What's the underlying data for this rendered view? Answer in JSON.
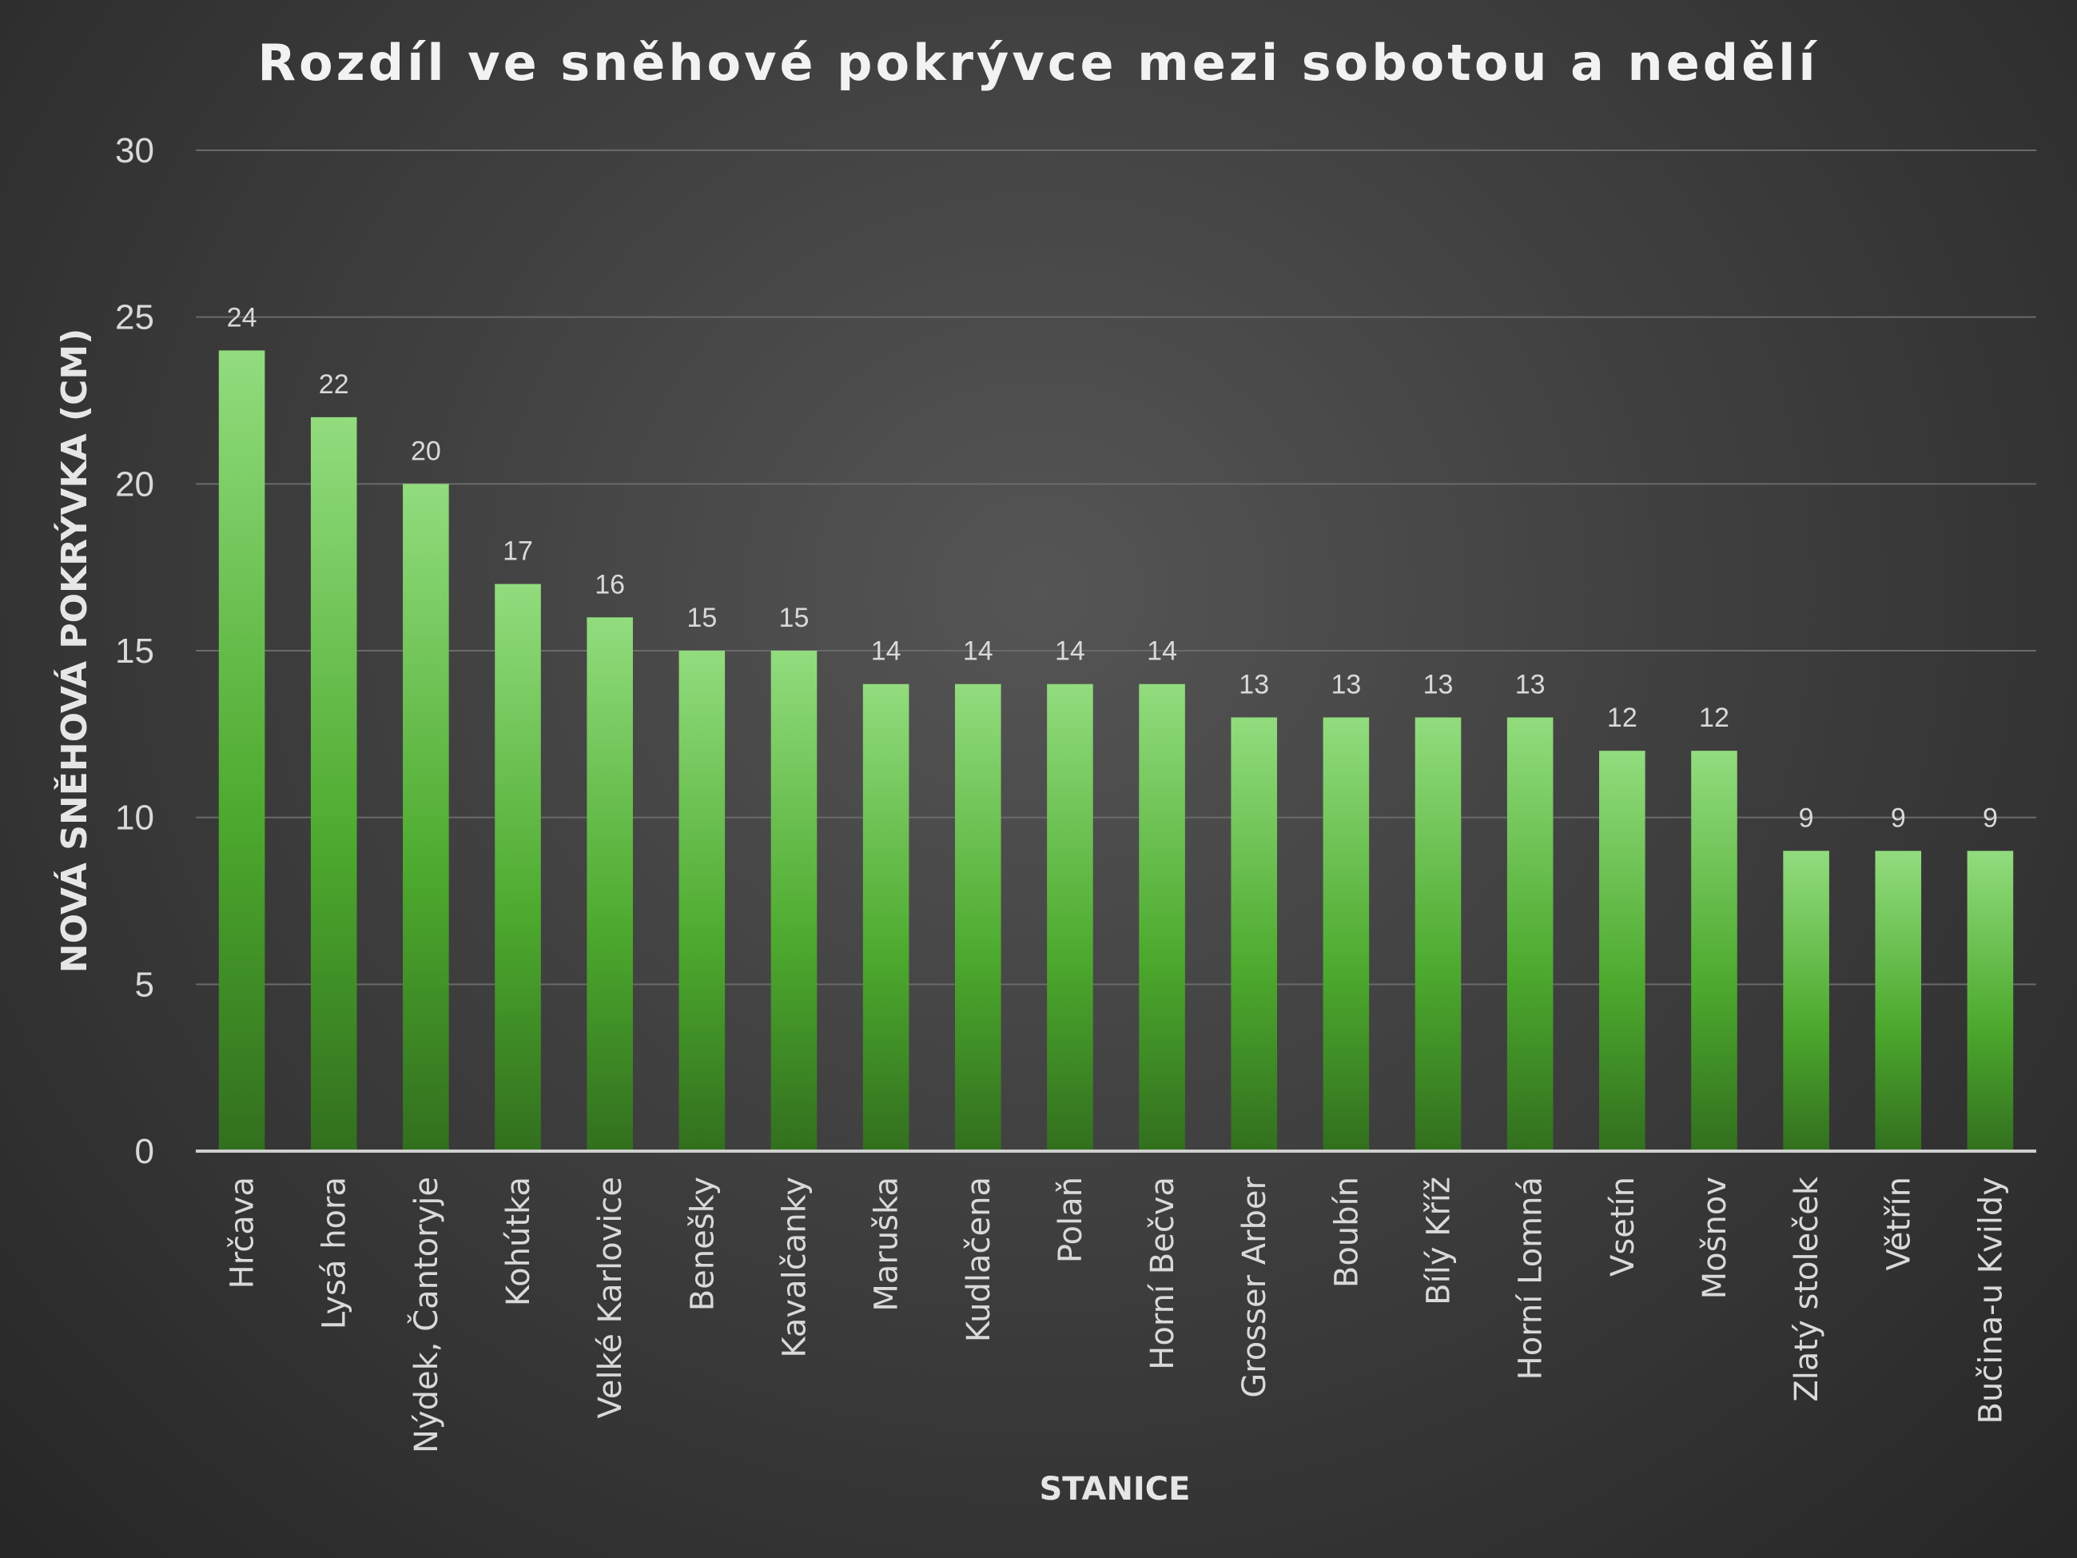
{
  "chart_data": {
    "type": "bar",
    "title": "Rozdíl ve sněhové pokrývce mezi sobotou a nedělí",
    "xlabel": "STANICE",
    "ylabel": "NOVÁ SNĚHOVÁ POKRÝVKA (CM)",
    "ylim": [
      0,
      30
    ],
    "yticks": [
      0,
      5,
      10,
      15,
      20,
      25,
      30
    ],
    "grid": true,
    "legend": "none",
    "data_labels": true,
    "categories": [
      "Hrčava",
      "Lysá hora",
      "Nýdek, Čantoryje",
      "Kohútka",
      "Velké Karlovice",
      "Benešky",
      "Kavalčanky",
      "Maruška",
      "Kudlačena",
      "Polaň",
      "Horní Bečva",
      "Grosser Arber",
      "Boubín",
      "Bílý Kříž",
      "Horní Lomná",
      "Vsetín",
      "Mošnov",
      "Zlatý stoleček",
      "Větřín",
      "Bučina-u Kvildy"
    ],
    "values": [
      24,
      22,
      20,
      17,
      16,
      15,
      15,
      14,
      14,
      14,
      14,
      13,
      13,
      13,
      13,
      12,
      12,
      9,
      9,
      9
    ],
    "colors": {
      "bar_top": "#92dc7e",
      "bar_mid": "#4daa2e",
      "bar_bottom": "#326f1e"
    }
  }
}
